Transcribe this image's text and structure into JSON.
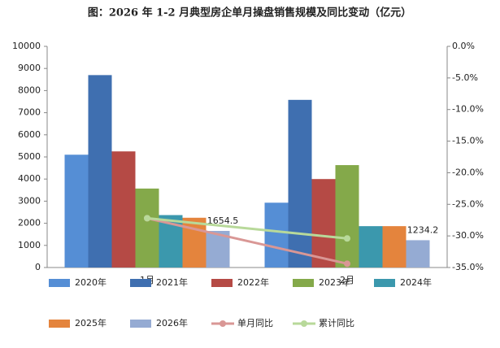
{
  "chart_data": {
    "type": "bar",
    "title": "图：2026 年 1-2 月典型房企单月操盘销售规模及同比变动（亿元）",
    "categories": [
      "1月",
      "2月"
    ],
    "series": [
      {
        "name": "2020年",
        "color": "#558ed5",
        "values": [
          5100,
          2930
        ]
      },
      {
        "name": "2021年",
        "color": "#3f6fb0",
        "values": [
          8700,
          7580
        ]
      },
      {
        "name": "2022年",
        "color": "#b54a45",
        "values": [
          5250,
          4000
        ]
      },
      {
        "name": "2023年",
        "color": "#84a94a",
        "values": [
          3570,
          4630
        ]
      },
      {
        "name": "2024年",
        "color": "#3b98ad",
        "values": [
          2370,
          1870
        ]
      },
      {
        "name": "2025年",
        "color": "#e4843d",
        "values": [
          2250,
          1870
        ]
      },
      {
        "name": "2026年",
        "color": "#95abd3",
        "values": [
          1654.5,
          1234.2
        ],
        "data_labels": true
      },
      {
        "name": "单月同比",
        "color": "#d99795",
        "type": "line",
        "axis": "y2",
        "values": [
          -27.2,
          -34.4
        ]
      },
      {
        "name": "累计同比",
        "color": "#b8d99a",
        "type": "line",
        "axis": "y2",
        "values": [
          -27.2,
          -30.4
        ]
      }
    ],
    "ylim": [
      0,
      10000
    ],
    "yticks": [
      0,
      1000,
      2000,
      3000,
      4000,
      5000,
      6000,
      7000,
      8000,
      9000,
      10000
    ],
    "y2lim": [
      -35,
      0
    ],
    "y2ticks": [
      {
        "value": 0,
        "label": "0.0%"
      },
      {
        "value": -5,
        "label": "-5.0%"
      },
      {
        "value": -10,
        "label": "-10.0%"
      },
      {
        "value": -15,
        "label": "-15.0%"
      },
      {
        "value": -20,
        "label": "-20.0%"
      },
      {
        "value": -25,
        "label": "-25.0%"
      },
      {
        "value": -30,
        "label": "-30.0%"
      },
      {
        "value": -35,
        "label": "-35.0%"
      }
    ],
    "grid": false
  }
}
